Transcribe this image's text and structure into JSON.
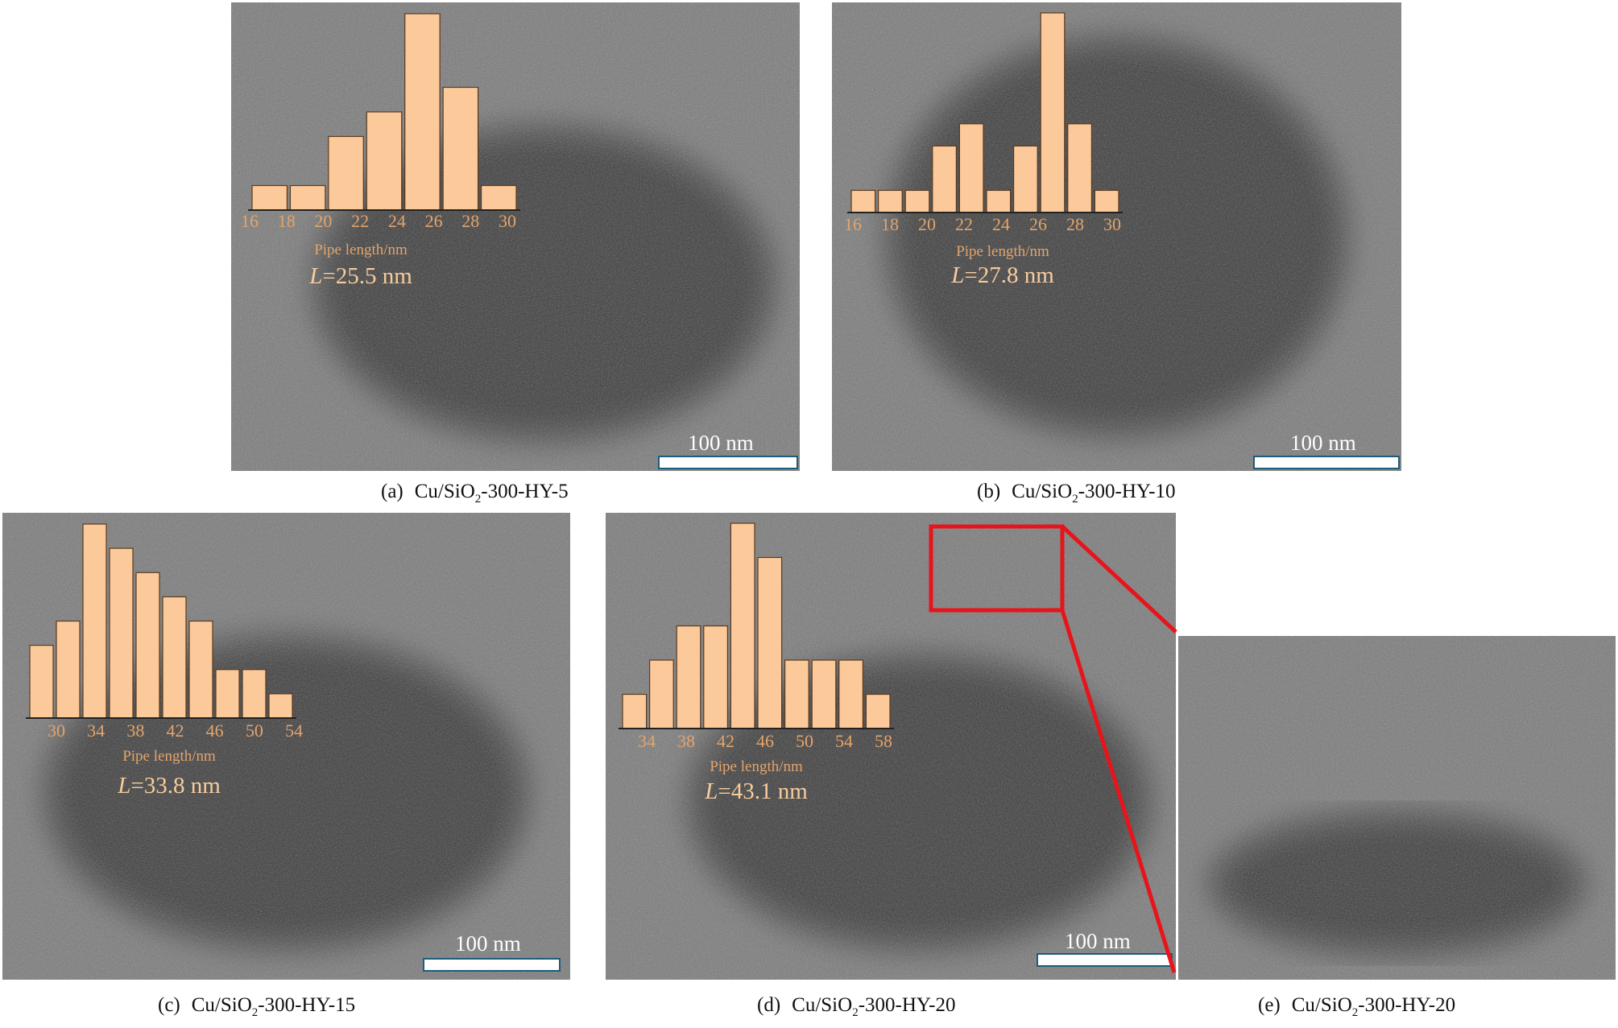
{
  "panels": [
    {
      "label": "(a)",
      "formula_pre": "Cu/SiO",
      "formula_sub": "2",
      "formula_post": "-300-HY-5",
      "scale_bar": "100 nm"
    },
    {
      "label": "(b)",
      "formula_pre": "Cu/SiO",
      "formula_sub": "2",
      "formula_post": "-300-HY-10",
      "scale_bar": "100 nm"
    },
    {
      "label": "(c)",
      "formula_pre": "Cu/SiO",
      "formula_sub": "2",
      "formula_post": "-300-HY-15",
      "scale_bar": "100 nm"
    },
    {
      "label": "(d)",
      "formula_pre": "Cu/SiO",
      "formula_sub": "2",
      "formula_post": "-300-HY-20",
      "scale_bar": "100 nm"
    },
    {
      "label": "(e)",
      "formula_pre": "Cu/SiO",
      "formula_sub": "2",
      "formula_post": "-300-HY-20"
    }
  ],
  "colors": {
    "bar_fill": "#fcc99a",
    "bar_stroke": "#5a3a1e",
    "tick_text": "#e3a46c",
    "mean_text": "#f8cc9c",
    "zoom_box": "#e8141b"
  },
  "chart_data": [
    {
      "type": "bar",
      "panel": "a",
      "xlabel": "Pipe length/nm",
      "tick_labels": [
        "16",
        "18",
        "20",
        "22",
        "24",
        "26",
        "28",
        "30"
      ],
      "values": [
        1,
        1,
        3,
        4,
        8,
        5,
        1
      ],
      "mean_label": "=25.5 nm",
      "mean_symbol": "L"
    },
    {
      "type": "bar",
      "panel": "b",
      "xlabel": "Pipe length/nm",
      "tick_labels": [
        "16",
        "18",
        "20",
        "22",
        "24",
        "26",
        "28",
        "30"
      ],
      "values": [
        1,
        1,
        1,
        3,
        4,
        1,
        3,
        9,
        4,
        1
      ],
      "mean_label": "=27.8 nm",
      "mean_symbol": "L"
    },
    {
      "type": "bar",
      "panel": "c",
      "xlabel": "Pipe length/nm",
      "tick_labels": [
        "30",
        "34",
        "38",
        "42",
        "46",
        "50",
        "54"
      ],
      "values": [
        3,
        4,
        8,
        7,
        6,
        5,
        4,
        2,
        2,
        1
      ],
      "mean_label": "=33.8 nm",
      "mean_symbol": "L"
    },
    {
      "type": "bar",
      "panel": "d",
      "xlabel": "Pipe length/nm",
      "tick_labels": [
        "34",
        "38",
        "42",
        "46",
        "50",
        "54",
        "58"
      ],
      "values": [
        1,
        2,
        3,
        3,
        6,
        5,
        2,
        2,
        2,
        1
      ],
      "mean_label": "=43.1 nm",
      "mean_symbol": "L"
    }
  ]
}
